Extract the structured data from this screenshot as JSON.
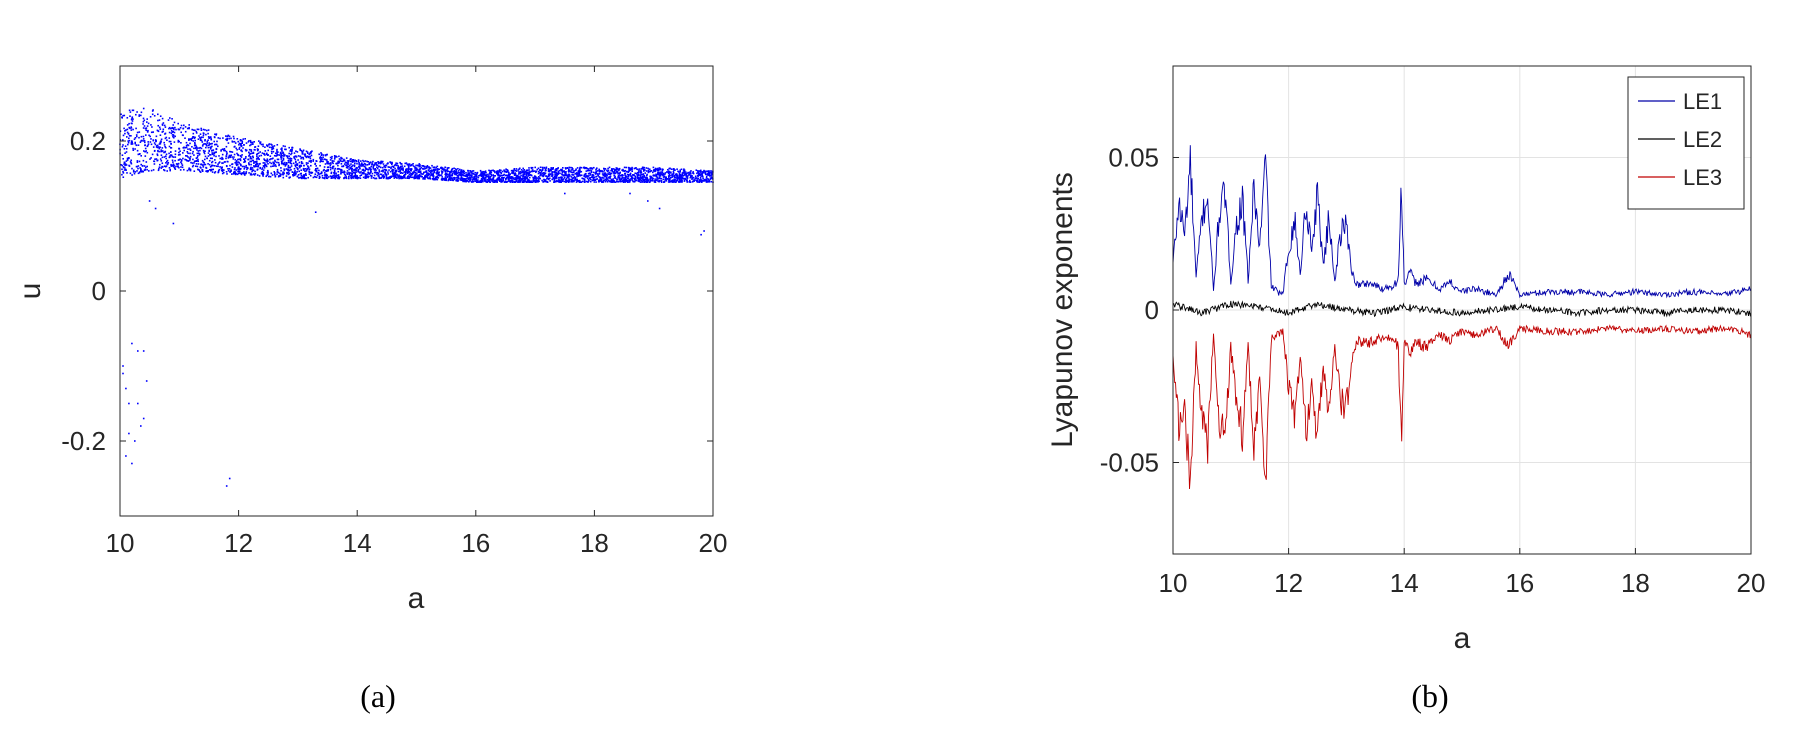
{
  "chart_data": [
    {
      "type": "scatter",
      "panel_label": "(a)",
      "xlabel": "a",
      "ylabel": "u",
      "xlim": [
        10,
        20
      ],
      "ylim": [
        -0.3,
        0.3
      ],
      "xticks": [
        "10",
        "12",
        "14",
        "16",
        "18",
        "20"
      ],
      "yticks": [
        "-0.2",
        "0",
        "0.2"
      ],
      "grid": false,
      "marker_color": "#0000ff",
      "envelope": {
        "a": [
          10,
          10.5,
          11,
          12,
          13,
          14,
          15,
          16,
          17,
          18,
          19,
          20
        ],
        "upper": [
          0.24,
          0.245,
          0.225,
          0.205,
          0.19,
          0.175,
          0.17,
          0.16,
          0.165,
          0.165,
          0.165,
          0.16
        ],
        "lower": [
          0.15,
          0.16,
          0.16,
          0.155,
          0.15,
          0.15,
          0.15,
          0.145,
          0.145,
          0.145,
          0.145,
          0.145
        ]
      },
      "outliers": {
        "x": [
          10.05,
          10.1,
          10.2,
          10.3,
          10.4,
          10.15,
          10.25,
          10.35,
          10.45,
          10.1,
          10.3,
          10.4,
          10.2,
          10.05,
          10.15,
          11.8,
          11.85,
          10.9,
          13.3,
          19.8,
          19.85,
          18.6,
          18.9,
          19.1,
          17.5,
          10.5,
          10.6
        ],
        "y": [
          -0.1,
          -0.13,
          -0.07,
          -0.08,
          -0.08,
          -0.15,
          -0.2,
          -0.18,
          -0.12,
          -0.22,
          -0.15,
          -0.17,
          -0.23,
          -0.11,
          -0.19,
          -0.26,
          -0.25,
          0.09,
          0.105,
          0.075,
          0.08,
          0.13,
          0.12,
          0.11,
          0.13,
          0.12,
          0.11
        ]
      }
    },
    {
      "type": "line",
      "panel_label": "(b)",
      "xlabel": "a",
      "ylabel": "Lyapunov exponents",
      "xlim": [
        10,
        20
      ],
      "ylim": [
        -0.08,
        0.08
      ],
      "xticks": [
        "10",
        "12",
        "14",
        "16",
        "18",
        "20"
      ],
      "yticks": [
        "-0.05",
        "0",
        "0.05"
      ],
      "grid": true,
      "legend_position": "top-right",
      "series": [
        {
          "name": "LE1",
          "color": "#0000a8",
          "x": [
            10,
            10.1,
            10.2,
            10.3,
            10.4,
            10.5,
            10.6,
            10.7,
            10.8,
            10.9,
            11,
            11.1,
            11.2,
            11.3,
            11.4,
            11.5,
            11.6,
            11.7,
            11.8,
            11.9,
            12,
            12.1,
            12.2,
            12.3,
            12.4,
            12.5,
            12.6,
            12.7,
            12.8,
            12.9,
            13,
            13.1,
            13.2,
            13.4,
            13.6,
            13.8,
            13.9,
            13.95,
            14,
            14.1,
            14.2,
            14.4,
            14.6,
            14.8,
            15,
            15.2,
            15.4,
            15.6,
            15.8,
            16,
            16.5,
            17,
            17.5,
            18,
            18.5,
            19,
            19.5,
            20
          ],
          "y": [
            0.015,
            0.035,
            0.025,
            0.048,
            0.01,
            0.03,
            0.038,
            0.006,
            0.032,
            0.038,
            0.01,
            0.028,
            0.036,
            0.01,
            0.04,
            0.02,
            0.049,
            0.008,
            0.006,
            0.005,
            0.02,
            0.03,
            0.012,
            0.035,
            0.02,
            0.038,
            0.015,
            0.03,
            0.01,
            0.025,
            0.028,
            0.012,
            0.008,
            0.009,
            0.007,
            0.008,
            0.01,
            0.044,
            0.008,
            0.012,
            0.009,
            0.01,
            0.007,
            0.009,
            0.006,
            0.007,
            0.006,
            0.005,
            0.012,
            0.005,
            0.006,
            0.006,
            0.005,
            0.006,
            0.005,
            0.006,
            0.005,
            0.007
          ]
        },
        {
          "name": "LE2",
          "color": "#000000",
          "x": [
            10,
            10.5,
            11,
            11.5,
            12,
            12.5,
            13,
            13.5,
            14,
            14.5,
            15,
            15.5,
            16,
            16.5,
            17,
            17.5,
            18,
            18.5,
            19,
            19.5,
            20
          ],
          "y": [
            0.002,
            -0.001,
            0.002,
            0.001,
            -0.001,
            0.002,
            0.0,
            -0.001,
            0.001,
            0.0,
            -0.001,
            0.0,
            0.001,
            0.0,
            -0.001,
            0.0,
            0.0,
            -0.001,
            0.0,
            0.0,
            -0.001
          ]
        },
        {
          "name": "LE3",
          "color": "#c00000",
          "x": [
            10,
            10.1,
            10.2,
            10.3,
            10.4,
            10.5,
            10.6,
            10.7,
            10.8,
            10.9,
            11,
            11.1,
            11.2,
            11.3,
            11.4,
            11.5,
            11.6,
            11.7,
            11.8,
            11.9,
            12,
            12.1,
            12.2,
            12.3,
            12.4,
            12.5,
            12.6,
            12.7,
            12.8,
            12.9,
            13,
            13.1,
            13.2,
            13.4,
            13.6,
            13.8,
            13.9,
            13.95,
            14,
            14.1,
            14.2,
            14.4,
            14.6,
            14.8,
            15,
            15.2,
            15.4,
            15.6,
            15.8,
            16,
            16.5,
            17,
            17.5,
            18,
            18.5,
            19,
            19.5,
            20
          ],
          "y": [
            -0.015,
            -0.04,
            -0.03,
            -0.06,
            -0.012,
            -0.035,
            -0.044,
            -0.008,
            -0.036,
            -0.045,
            -0.012,
            -0.032,
            -0.04,
            -0.012,
            -0.045,
            -0.025,
            -0.054,
            -0.01,
            -0.008,
            -0.007,
            -0.025,
            -0.035,
            -0.015,
            -0.04,
            -0.025,
            -0.042,
            -0.018,
            -0.035,
            -0.012,
            -0.03,
            -0.032,
            -0.015,
            -0.01,
            -0.011,
            -0.009,
            -0.01,
            -0.012,
            -0.045,
            -0.01,
            -0.014,
            -0.011,
            -0.012,
            -0.008,
            -0.01,
            -0.007,
            -0.008,
            -0.007,
            -0.006,
            -0.012,
            -0.006,
            -0.007,
            -0.007,
            -0.006,
            -0.007,
            -0.006,
            -0.007,
            -0.006,
            -0.008
          ]
        }
      ]
    }
  ]
}
